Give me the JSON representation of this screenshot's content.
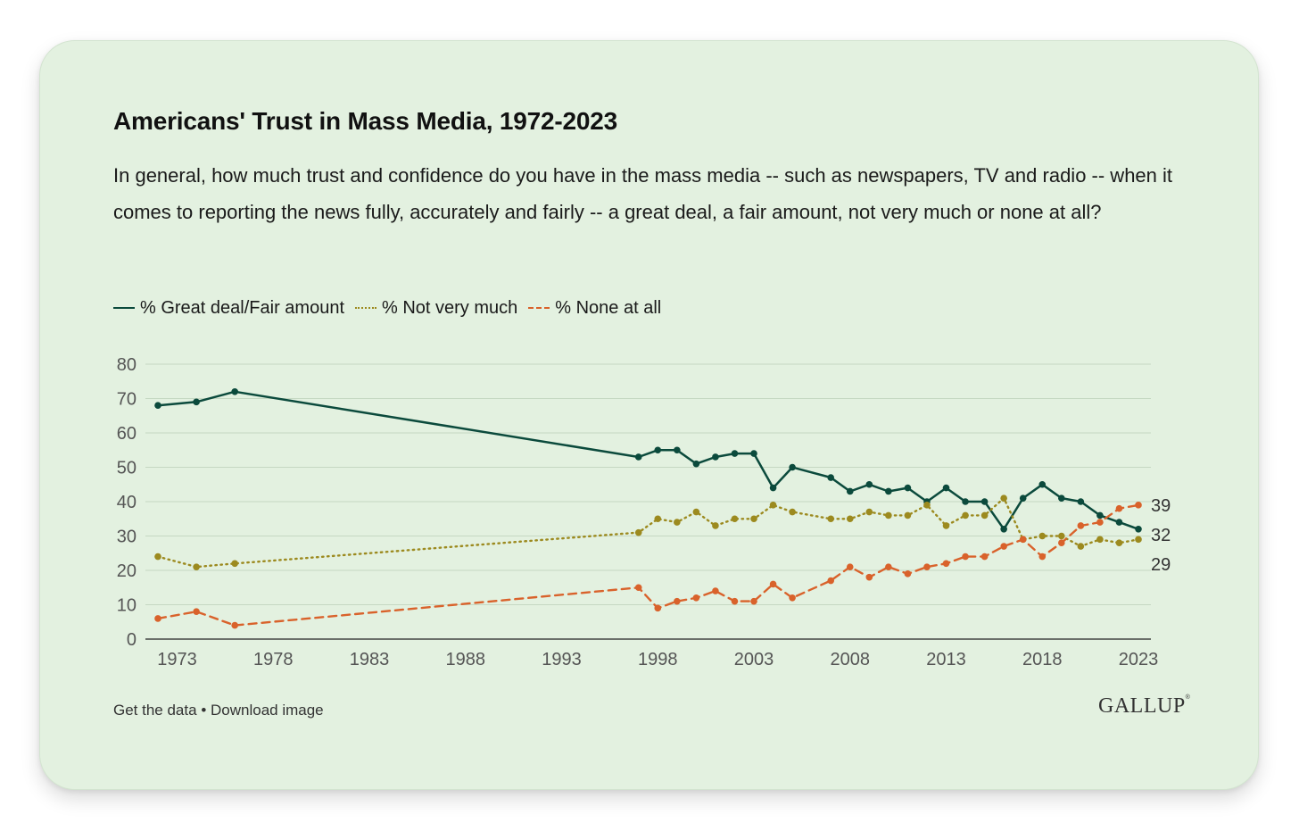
{
  "title": "Americans' Trust in Mass Media, 1972-2023",
  "subtitle": "In general, how much trust and confidence do you have in the mass media -- such as newspapers, TV and radio -- when it comes to reporting the news fully, accurately and fairly -- a great deal, a fair amount, not very much or none at all?",
  "footer": {
    "get_data": "Get the data",
    "separator": "•",
    "download": "Download image"
  },
  "logo": {
    "text": "GALLUP",
    "mark": "®"
  },
  "chart_data": {
    "type": "line",
    "xlim": [
      1972,
      2023
    ],
    "ylim": [
      0,
      80
    ],
    "yticks": [
      0,
      10,
      20,
      30,
      40,
      50,
      60,
      70,
      80
    ],
    "xticks": [
      1973,
      1978,
      1983,
      1988,
      1993,
      1998,
      2003,
      2008,
      2013,
      2018,
      2023
    ],
    "grid": "horizontal",
    "legend_position": "top-left",
    "end_labels": true,
    "series": [
      {
        "name": "% Great deal/Fair amount",
        "color": "#0b4a3c",
        "style": "solid",
        "points": [
          [
            1972,
            68
          ],
          [
            1974,
            69
          ],
          [
            1976,
            72
          ],
          [
            1997,
            53
          ],
          [
            1998,
            55
          ],
          [
            1999,
            55
          ],
          [
            2000,
            51
          ],
          [
            2001,
            53
          ],
          [
            2002,
            54
          ],
          [
            2003,
            54
          ],
          [
            2004,
            44
          ],
          [
            2005,
            50
          ],
          [
            2007,
            47
          ],
          [
            2008,
            43
          ],
          [
            2009,
            45
          ],
          [
            2010,
            43
          ],
          [
            2011,
            44
          ],
          [
            2012,
            40
          ],
          [
            2013,
            44
          ],
          [
            2014,
            40
          ],
          [
            2015,
            40
          ],
          [
            2016,
            32
          ],
          [
            2017,
            41
          ],
          [
            2018,
            45
          ],
          [
            2019,
            41
          ],
          [
            2020,
            40
          ],
          [
            2021,
            36
          ],
          [
            2022,
            34
          ],
          [
            2023,
            32
          ]
        ],
        "end_label": "32"
      },
      {
        "name": "% Not very much",
        "color": "#9c8a1f",
        "style": "dotted",
        "points": [
          [
            1972,
            24
          ],
          [
            1974,
            21
          ],
          [
            1976,
            22
          ],
          [
            1997,
            31
          ],
          [
            1998,
            35
          ],
          [
            1999,
            34
          ],
          [
            2000,
            37
          ],
          [
            2001,
            33
          ],
          [
            2002,
            35
          ],
          [
            2003,
            35
          ],
          [
            2004,
            39
          ],
          [
            2005,
            37
          ],
          [
            2007,
            35
          ],
          [
            2008,
            35
          ],
          [
            2009,
            37
          ],
          [
            2010,
            36
          ],
          [
            2011,
            36
          ],
          [
            2012,
            39
          ],
          [
            2013,
            33
          ],
          [
            2014,
            36
          ],
          [
            2015,
            36
          ],
          [
            2016,
            41
          ],
          [
            2017,
            29
          ],
          [
            2018,
            30
          ],
          [
            2019,
            30
          ],
          [
            2020,
            27
          ],
          [
            2021,
            29
          ],
          [
            2022,
            28
          ],
          [
            2023,
            29
          ]
        ],
        "end_label": "29"
      },
      {
        "name": "% None at all",
        "color": "#d9622b",
        "style": "dashed",
        "points": [
          [
            1972,
            6
          ],
          [
            1974,
            8
          ],
          [
            1976,
            4
          ],
          [
            1997,
            15
          ],
          [
            1998,
            9
          ],
          [
            1999,
            11
          ],
          [
            2000,
            12
          ],
          [
            2001,
            14
          ],
          [
            2002,
            11
          ],
          [
            2003,
            11
          ],
          [
            2004,
            16
          ],
          [
            2005,
            12
          ],
          [
            2007,
            17
          ],
          [
            2008,
            21
          ],
          [
            2009,
            18
          ],
          [
            2010,
            21
          ],
          [
            2011,
            19
          ],
          [
            2012,
            21
          ],
          [
            2013,
            22
          ],
          [
            2014,
            24
          ],
          [
            2015,
            24
          ],
          [
            2016,
            27
          ],
          [
            2017,
            29
          ],
          [
            2018,
            24
          ],
          [
            2019,
            28
          ],
          [
            2020,
            33
          ],
          [
            2021,
            34
          ],
          [
            2022,
            38
          ],
          [
            2023,
            39
          ]
        ],
        "end_label": "39"
      }
    ]
  }
}
